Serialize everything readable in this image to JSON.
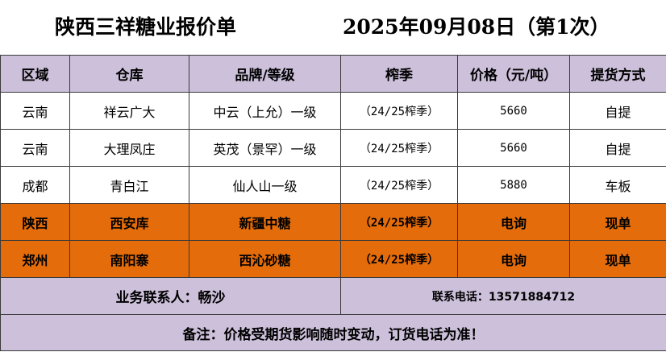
{
  "title": {
    "company": "陕西三祥糖业报价单",
    "date": "2025年09月08日（第1次）"
  },
  "headers": [
    "区域",
    "仓库",
    "品牌/等级",
    "榨季",
    "价格（元/吨）",
    "提货方式"
  ],
  "rows": [
    {
      "region": "云南",
      "warehouse": "祥云广大",
      "brand": "中云（上允）一级",
      "season": "（24/25榨季）",
      "price": "5660",
      "pickup": "自提",
      "highlight": false
    },
    {
      "region": "云南",
      "warehouse": "大理凤庄",
      "brand": "英茂（景罕）一级",
      "season": "（24/25榨季）",
      "price": "5660",
      "pickup": "自提",
      "highlight": false
    },
    {
      "region": "成都",
      "warehouse": "青白江",
      "brand": "仙人山一级",
      "season": "（24/25榨季）",
      "price": "5880",
      "pickup": "车板",
      "highlight": false
    },
    {
      "region": "陕西",
      "warehouse": "西安库",
      "brand": "新疆中糖",
      "season": "（24/25榨季）",
      "price": "电询",
      "pickup": "现单",
      "highlight": true
    },
    {
      "region": "郑州",
      "warehouse": "南阳寨",
      "brand": "西沁砂糖",
      "season": "（24/25榨季）",
      "price": "电询",
      "pickup": "现单",
      "highlight": true
    }
  ],
  "contact": {
    "person": "业务联系人：畅沙",
    "phone": "联系电话：13571884712"
  },
  "note": "备注：价格受期货影响随时变动，订货电话为准！",
  "colors": {
    "header_bg": "#ccc0da",
    "highlight_bg": "#e46c0a"
  }
}
